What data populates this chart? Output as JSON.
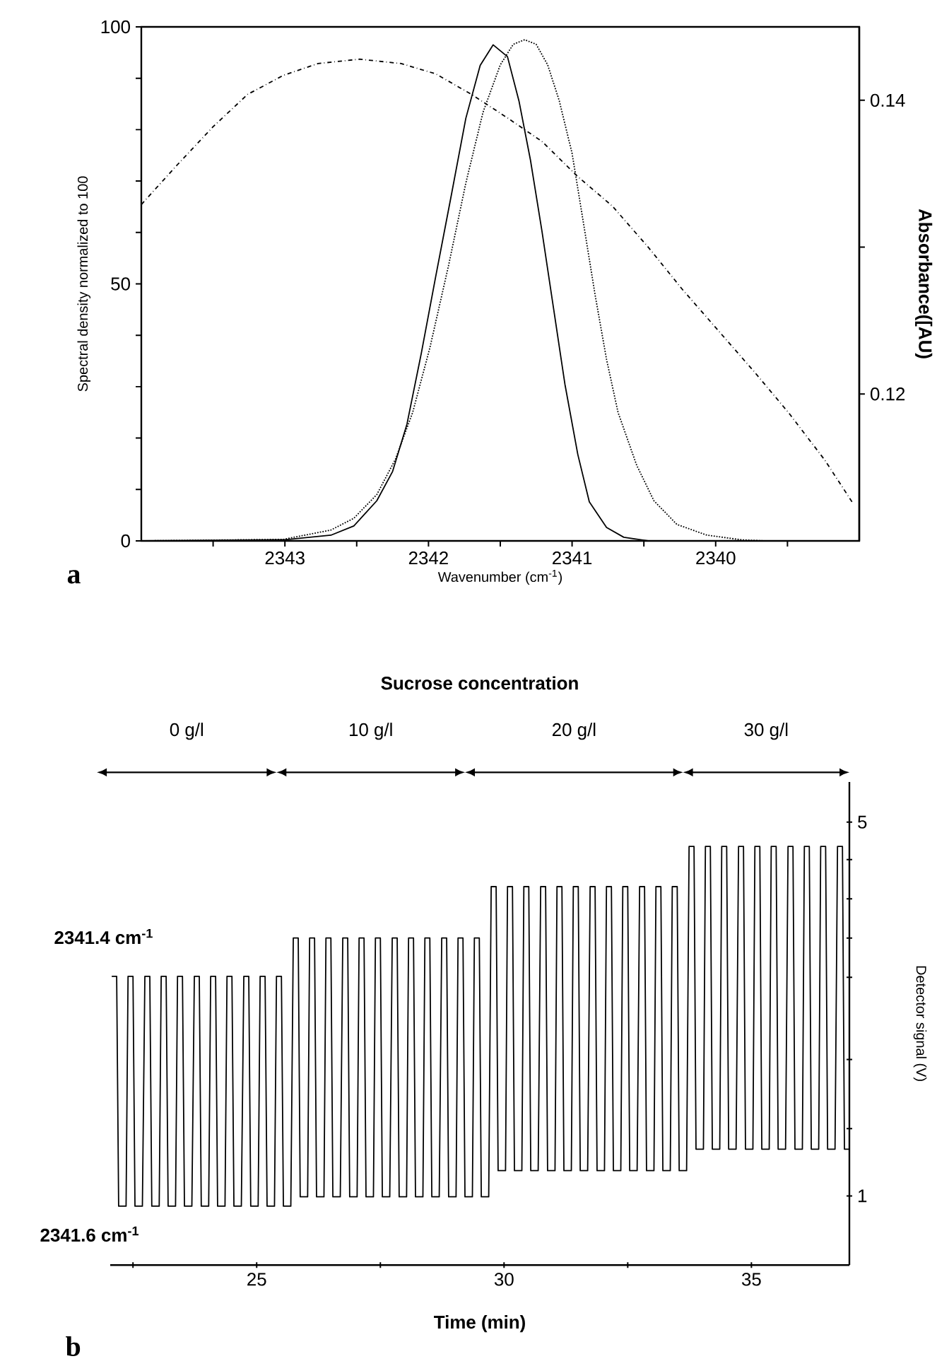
{
  "chart_data": [
    {
      "type": "line",
      "xlabel": "Wavenumber (cm$^{-1}$)",
      "ylabel": "Spectral density normalized to 100",
      "y2label": "Absorbance([AU)",
      "annotations": [
        "a"
      ],
      "xlim": [
        2344,
        2339
      ],
      "xticks": [
        {
          "value": 2343.5,
          "label": null
        },
        2343,
        {
          "value": 2342.5,
          "label": null
        },
        2342,
        {
          "value": 2341.5,
          "label": null
        },
        2341,
        {
          "value": 2340.5,
          "label": null
        },
        2340,
        {
          "value": 2339.5,
          "label": null
        }
      ],
      "ylim": [
        0,
        100
      ],
      "yticks": [
        0,
        {
          "value": 10,
          "label": null
        },
        {
          "value": 20,
          "label": null
        },
        {
          "value": 30,
          "label": null
        },
        {
          "value": 40,
          "label": null
        },
        50,
        {
          "value": 60,
          "label": null
        },
        {
          "value": 70,
          "label": null
        },
        {
          "value": 80,
          "label": null
        },
        {
          "value": 90,
          "label": null
        },
        100
      ],
      "y2lim": [
        0.11,
        0.145
      ],
      "y2ticks": [
        0.12,
        {
          "value": 0.13,
          "label": null
        },
        0.14
      ],
      "series": [
        {
          "color": "#000000",
          "line_style": "solid",
          "x": [
            2344.0,
            2343.01,
            2342.68,
            2342.52,
            2342.36,
            2342.25,
            2342.15,
            2342.05,
            2341.95,
            2341.84,
            2341.74,
            2341.64,
            2341.55,
            2341.45,
            2341.37,
            2341.29,
            2341.21,
            2341.13,
            2341.05,
            2340.96,
            2340.88,
            2340.76,
            2340.64,
            2340.47,
            2340.31,
            2340.06,
            2340.0
          ],
          "values": [
            0,
            0.2,
            1.1,
            2.9,
            7.8,
            13.5,
            22.7,
            36.5,
            51.4,
            67.4,
            82.2,
            92.5,
            96.5,
            94.2,
            85.6,
            74.1,
            60.3,
            45.4,
            30.5,
            16.8,
            7.6,
            2.6,
            0.7,
            0,
            0,
            0,
            0
          ]
        },
        {
          "color": "#000000",
          "line_style": "dotted",
          "x": [
            2344.0,
            2343.01,
            2342.68,
            2342.52,
            2342.36,
            2342.23,
            2342.11,
            2341.99,
            2341.86,
            2341.74,
            2341.62,
            2341.5,
            2341.41,
            2341.33,
            2341.25,
            2341.17,
            2341.09,
            2341.0,
            2340.92,
            2340.84,
            2340.76,
            2340.68,
            2340.55,
            2340.43,
            2340.27,
            2340.06,
            2339.82,
            2339.65,
            2339.0
          ],
          "values": [
            0,
            0.3,
            2.1,
            4.4,
            9.0,
            15.9,
            25.0,
            37.6,
            53.6,
            69.6,
            83.4,
            92.6,
            96.6,
            97.5,
            96.6,
            92.6,
            85.7,
            75.4,
            61.7,
            47.9,
            35.3,
            25.0,
            14.7,
            7.8,
            3.2,
            1.1,
            0.2,
            0,
            0
          ]
        },
        {
          "color": "#000000",
          "line_style": "dashdot",
          "axis": "y2",
          "x": [
            2344.0,
            2343.75,
            2343.5,
            2343.26,
            2343.01,
            2342.77,
            2342.48,
            2342.19,
            2341.95,
            2341.7,
            2341.45,
            2341.21,
            2340.96,
            2340.72,
            2340.47,
            2340.23,
            2339.98,
            2339.73,
            2339.49,
            2339.24,
            2339.04
          ],
          "values": [
            0.1329,
            0.1356,
            0.1382,
            0.1404,
            0.1417,
            0.1425,
            0.1428,
            0.1425,
            0.1418,
            0.1404,
            0.1388,
            0.1372,
            0.1348,
            0.1328,
            0.13,
            0.1271,
            0.1243,
            0.1215,
            0.1187,
            0.1155,
            0.1125
          ]
        }
      ]
    },
    {
      "type": "line",
      "title": "Sucrose concentration",
      "xlabel": "Time (min)",
      "ylabel": "Detector signal (V)",
      "annotations": [
        "0 g/l",
        "10 g/l",
        "20 g/l",
        "30 g/l",
        "2341.4 cm$^{-1}$",
        "2341.6 cm$^{-1}$",
        "b"
      ],
      "xlim": [
        22.04,
        36.98
      ],
      "xticks": [
        {
          "value": 22.5,
          "label": null
        },
        25,
        {
          "value": 27.5,
          "label": null
        },
        30,
        {
          "value": 32.5,
          "label": null
        },
        35
      ],
      "ylim": [
        0.26,
        5.43
      ],
      "yticks": [
        1,
        {
          "value": 1.72,
          "label": null
        },
        {
          "value": 2.46,
          "label": null
        },
        {
          "value": 3.34,
          "label": null
        },
        {
          "value": 3.76,
          "label": null
        },
        {
          "value": 4.18,
          "label": null
        },
        {
          "value": 4.6,
          "label": null
        },
        5
      ],
      "series": [
        {
          "color": "#000000",
          "line_style": "solid",
          "x": [
            22.07,
            22.17,
            22.21,
            22.36,
            22.4,
            22.5,
            22.54,
            22.69,
            22.74,
            22.84,
            22.88,
            23.03,
            23.07,
            23.17,
            23.21,
            23.36,
            23.4,
            23.5,
            23.54,
            23.69,
            23.74,
            23.84,
            23.88,
            24.03,
            24.07,
            24.17,
            24.21,
            24.36,
            24.4,
            24.5,
            24.54,
            24.69,
            24.74,
            24.84,
            24.88,
            25.03,
            25.07,
            25.17,
            25.21,
            25.36,
            25.4,
            25.5,
            25.54,
            25.69,
            25.74,
            25.84,
            25.88,
            26.03,
            26.07,
            26.17,
            26.21,
            26.36,
            26.4,
            26.5,
            26.54,
            26.69,
            26.74,
            26.84,
            26.88,
            27.03,
            27.07,
            27.17,
            27.21,
            27.36,
            27.4,
            27.5,
            27.54,
            27.69,
            27.74,
            27.84,
            27.88,
            28.03,
            28.07,
            28.17,
            28.21,
            28.36,
            28.4,
            28.5,
            28.54,
            28.69,
            28.74,
            28.84,
            28.88,
            29.03,
            29.07,
            29.17,
            29.21,
            29.36,
            29.4,
            29.5,
            29.54,
            29.69,
            29.74,
            29.84,
            29.88,
            30.03,
            30.07,
            30.17,
            30.21,
            30.36,
            30.4,
            30.5,
            30.54,
            30.69,
            30.74,
            30.84,
            30.88,
            31.03,
            31.07,
            31.17,
            31.21,
            31.36,
            31.4,
            31.5,
            31.54,
            31.69,
            31.74,
            31.84,
            31.88,
            32.03,
            32.07,
            32.17,
            32.21,
            32.36,
            32.4,
            32.5,
            32.54,
            32.69,
            32.74,
            32.84,
            32.88,
            33.03,
            33.07,
            33.17,
            33.21,
            33.36,
            33.4,
            33.5,
            33.54,
            33.69,
            33.74,
            33.84,
            33.88,
            34.03,
            34.07,
            34.17,
            34.21,
            34.36,
            34.4,
            34.5,
            34.54,
            34.69,
            34.74,
            34.84,
            34.88,
            35.03,
            35.07,
            35.17,
            35.21,
            35.36,
            35.4,
            35.5,
            35.54,
            35.69,
            35.74,
            35.84,
            35.88,
            36.03,
            36.07,
            36.17,
            36.21,
            36.36,
            36.4,
            36.5,
            36.54,
            36.69,
            36.74,
            36.84,
            36.88,
            36.97
          ],
          "values": [
            3.35,
            3.35,
            0.89,
            0.89,
            3.35,
            3.35,
            0.89,
            0.89,
            3.35,
            3.35,
            0.89,
            0.89,
            3.35,
            3.35,
            0.89,
            0.89,
            3.35,
            3.35,
            0.89,
            0.89,
            3.35,
            3.35,
            0.89,
            0.89,
            3.35,
            3.35,
            0.89,
            0.89,
            3.35,
            3.35,
            0.89,
            0.89,
            3.35,
            3.35,
            0.89,
            0.89,
            3.35,
            3.35,
            0.89,
            0.89,
            3.35,
            3.35,
            0.89,
            0.89,
            3.76,
            3.76,
            0.99,
            0.99,
            3.76,
            3.76,
            0.99,
            0.99,
            3.76,
            3.76,
            0.99,
            0.99,
            3.76,
            3.76,
            0.99,
            0.99,
            3.76,
            3.76,
            0.99,
            0.99,
            3.76,
            3.76,
            0.99,
            0.99,
            3.76,
            3.76,
            0.99,
            0.99,
            3.76,
            3.76,
            0.99,
            0.99,
            3.76,
            3.76,
            0.99,
            0.99,
            3.76,
            3.76,
            0.99,
            0.99,
            3.76,
            3.76,
            0.99,
            0.99,
            3.76,
            3.76,
            0.99,
            0.99,
            4.31,
            4.31,
            1.27,
            1.27,
            4.31,
            4.31,
            1.27,
            1.27,
            4.31,
            4.31,
            1.27,
            1.27,
            4.31,
            4.31,
            1.27,
            1.27,
            4.31,
            4.31,
            1.27,
            1.27,
            4.31,
            4.31,
            1.27,
            1.27,
            4.31,
            4.31,
            1.27,
            1.27,
            4.31,
            4.31,
            1.27,
            1.27,
            4.31,
            4.31,
            1.27,
            1.27,
            4.31,
            4.31,
            1.27,
            1.27,
            4.31,
            4.31,
            1.27,
            1.27,
            4.31,
            4.31,
            1.27,
            1.27,
            4.74,
            4.74,
            1.5,
            1.5,
            4.74,
            4.74,
            1.5,
            1.5,
            4.74,
            4.74,
            1.5,
            1.5,
            4.74,
            4.74,
            1.5,
            1.5,
            4.74,
            4.74,
            1.5,
            1.5,
            4.74,
            4.74,
            1.5,
            1.5,
            4.74,
            4.74,
            1.5,
            1.5,
            4.74,
            4.74,
            1.5,
            1.5,
            4.74,
            4.74,
            1.5,
            1.5,
            4.74,
            4.74,
            1.5,
            1.5
          ]
        }
      ]
    }
  ]
}
